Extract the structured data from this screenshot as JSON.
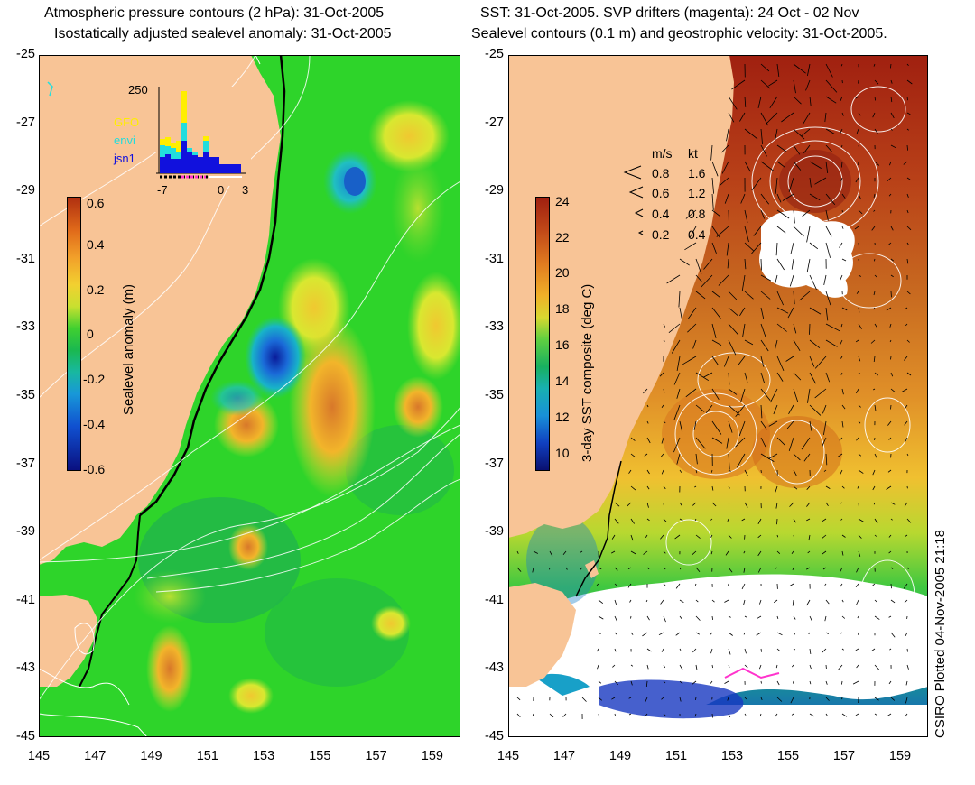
{
  "left_panel": {
    "title_line1": "Atmospheric pressure contours (2 hPa): 31-Oct-2005",
    "title_line2": "Isostatically adjusted sealevel anomaly: 31-Oct-2005",
    "colorbar": {
      "label": "Sealevel anomaly (m)",
      "ticks": [
        "0.6",
        "0.4",
        "0.2",
        "0",
        "-0.2",
        "-0.4",
        "-0.6"
      ],
      "min": -0.6,
      "max": 0.6
    },
    "inset": {
      "ymax_label": "250",
      "xticks": [
        "-7",
        "0",
        "3"
      ],
      "legend": [
        {
          "name": "GFO",
          "color": "#ffee00"
        },
        {
          "name": "envi",
          "color": "#22dddd"
        },
        {
          "name": "jsn1",
          "color": "#1111dd"
        }
      ]
    }
  },
  "right_panel": {
    "title_line1": "SST: 31-Oct-2005. SVP drifters (magenta): 24 Oct - 02 Nov",
    "title_line2": "Sealevel contours (0.1 m) and geostrophic velocity: 31-Oct-2005.",
    "colorbar": {
      "label": "3-day SST composite (deg C)",
      "ticks": [
        "24",
        "22",
        "20",
        "18",
        "16",
        "14",
        "12",
        "10"
      ],
      "min": 9,
      "max": 24
    },
    "speed_legend": {
      "header_ms": "m/s",
      "header_kt": "kt",
      "rows": [
        {
          "ms": "0.8",
          "kt": "1.6"
        },
        {
          "ms": "0.6",
          "kt": "1.2"
        },
        {
          "ms": "0.4",
          "kt": "0.8"
        },
        {
          "ms": "0.2",
          "kt": "0.4"
        }
      ]
    }
  },
  "axes": {
    "lat_ticks": [
      "-25",
      "-27",
      "-29",
      "-31",
      "-33",
      "-35",
      "-37",
      "-39",
      "-41",
      "-43",
      "-45"
    ],
    "lon_ticks": [
      "145",
      "147",
      "149",
      "151",
      "153",
      "155",
      "157",
      "159"
    ]
  },
  "footer": "CSIRO Plotted 04-Nov-2005 21:18",
  "colors": {
    "land": "#f8c496",
    "ocean_green": "#2ed42a",
    "cloud": "#ffffff"
  }
}
